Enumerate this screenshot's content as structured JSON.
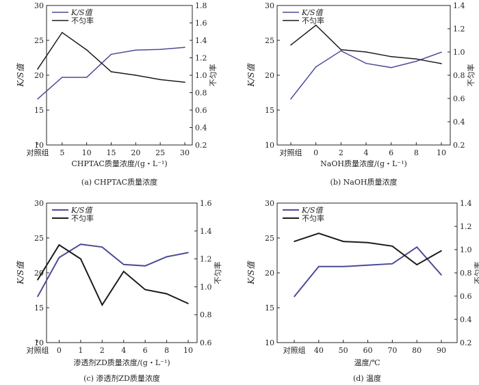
{
  "chart_data": [
    {
      "type": "line",
      "caption": "(a) CHPTAC质量浓度",
      "xlabel": "CHPTAC质量浓度/(g・L⁻¹)",
      "ylabel": "K/S值",
      "y2label": "不匀率",
      "categories": [
        "对照组",
        "5",
        "10",
        "15",
        "20",
        "25",
        "30"
      ],
      "ylim": [
        10,
        30
      ],
      "yticks": [
        "10",
        "15",
        "20",
        "25",
        "30"
      ],
      "y2lim": [
        0.2,
        1.8
      ],
      "y2ticks": [
        "0.2",
        "0.4",
        "0.6",
        "0.8",
        "1.0",
        "1.2",
        "1.4",
        "1.6",
        "1.8"
      ],
      "legend_position": "top-left",
      "series": [
        {
          "name": "K/S值",
          "axis": "left",
          "color": "#4a4a96",
          "values": [
            16.6,
            19.7,
            19.7,
            23.0,
            23.6,
            23.7,
            24.0
          ]
        },
        {
          "name": "不匀率",
          "axis": "right",
          "color": "#1a1a1a",
          "values": [
            1.07,
            1.49,
            1.29,
            1.04,
            1.0,
            0.95,
            0.92
          ]
        }
      ]
    },
    {
      "type": "line",
      "caption": "(b) NaOH质量浓度",
      "xlabel": "NaOH质量浓度/(g・L⁻¹)",
      "ylabel": "K/S值",
      "y2label": "不匀率",
      "categories": [
        "对照组",
        "0",
        "2",
        "4",
        "6",
        "8",
        "10"
      ],
      "ylim": [
        10,
        30
      ],
      "yticks": [
        "10",
        "15",
        "20",
        "25",
        "30"
      ],
      "y2lim": [
        0.2,
        1.4
      ],
      "y2ticks": [
        "0.2",
        "0.4",
        "0.6",
        "0.8",
        "1.0",
        "1.2",
        "1.4"
      ],
      "legend_position": "top-left",
      "series": [
        {
          "name": "K/S值",
          "axis": "left",
          "color": "#4a4a96",
          "values": [
            16.6,
            21.2,
            23.5,
            21.7,
            21.1,
            22.0,
            23.3
          ]
        },
        {
          "name": "不匀率",
          "axis": "right",
          "color": "#1a1a1a",
          "values": [
            1.06,
            1.23,
            1.02,
            1.0,
            0.96,
            0.94,
            0.9
          ]
        }
      ]
    },
    {
      "type": "line",
      "caption": "(c) 渗透剂ZD质量浓度",
      "xlabel": "渗透剂ZD质量浓度/(g・L⁻¹)",
      "ylabel": "K/S值",
      "y2label": "不匀率",
      "categories": [
        "对照组",
        "0",
        "1",
        "2",
        "4",
        "6",
        "8",
        "10"
      ],
      "ylim": [
        10,
        30
      ],
      "yticks": [
        "10",
        "15",
        "20",
        "25",
        "30"
      ],
      "y2lim": [
        0.6,
        1.6
      ],
      "y2ticks": [
        "0.6",
        "0.8",
        "1.0",
        "1.2",
        "1.4",
        "1.6"
      ],
      "legend_position": "top-left",
      "series": [
        {
          "name": "K/S值",
          "axis": "left",
          "color": "#4a4a96",
          "values": [
            16.6,
            22.2,
            24.1,
            23.7,
            21.2,
            21.0,
            22.3,
            22.9
          ]
        },
        {
          "name": "不匀率",
          "axis": "right",
          "color": "#1a1a1a",
          "values": [
            1.05,
            1.3,
            1.2,
            0.87,
            1.11,
            0.98,
            0.95,
            0.88
          ]
        }
      ]
    },
    {
      "type": "line",
      "caption": "(d) 温度",
      "xlabel": "温度/℃",
      "ylabel": "K/S值",
      "y2label": "不匀率",
      "categories": [
        "对照组",
        "40",
        "50",
        "60",
        "70",
        "80",
        "90"
      ],
      "ylim": [
        10,
        30
      ],
      "yticks": [
        "10",
        "15",
        "20",
        "25",
        "30"
      ],
      "y2lim": [
        0.2,
        1.4
      ],
      "y2ticks": [
        "0.2",
        "0.4",
        "0.6",
        "0.8",
        "1.0",
        "1.2",
        "1.4"
      ],
      "legend_position": "top-left",
      "series": [
        {
          "name": "K/S值",
          "axis": "left",
          "color": "#4a4a96",
          "values": [
            16.6,
            20.9,
            20.9,
            21.1,
            21.3,
            23.7,
            19.7
          ]
        },
        {
          "name": "不匀率",
          "axis": "right",
          "color": "#1a1a1a",
          "values": [
            1.07,
            1.14,
            1.07,
            1.06,
            1.03,
            0.87,
            0.99
          ]
        }
      ]
    }
  ]
}
